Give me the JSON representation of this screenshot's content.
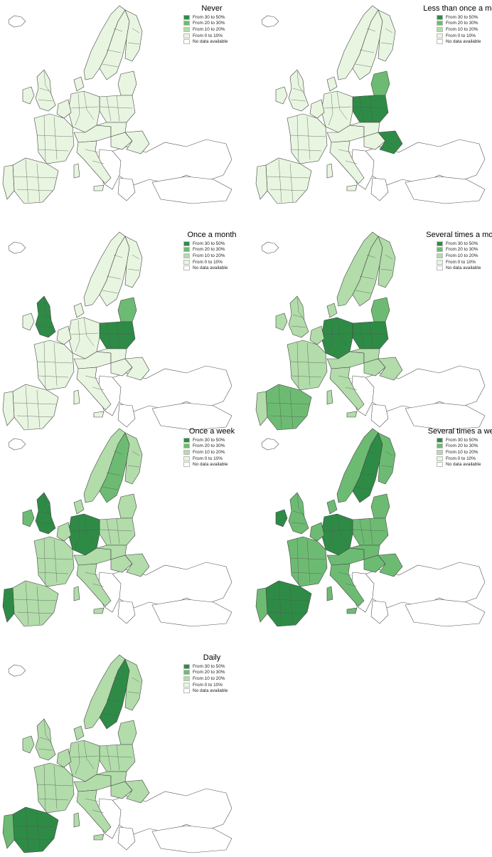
{
  "legend_classes": [
    {
      "label": "From 30 to 50%",
      "color": "#2e8b46"
    },
    {
      "label": "From 20 to 30%",
      "color": "#6dbb73"
    },
    {
      "label": "From 10 to 20%",
      "color": "#b2dcaa"
    },
    {
      "label": "From 0 to 10%",
      "color": "#e8f5e0"
    },
    {
      "label": "No data available",
      "color": "#ffffff"
    }
  ],
  "maps": [
    {
      "title": "Never",
      "dominant_class": "From 0 to 10%"
    },
    {
      "title": "Less than once a month",
      "dominant_class": "From 0 to 10%"
    },
    {
      "title": "Once a month",
      "dominant_class": "From 0 to 10%"
    },
    {
      "title": "Several times a month",
      "dominant_class": "From 10 to 20%"
    },
    {
      "title": "Once a week",
      "dominant_class": "From 10 to 20%"
    },
    {
      "title": "Several times a week",
      "dominant_class": "From 20 to 30%"
    },
    {
      "title": "Daily",
      "dominant_class": "From 10 to 20%"
    }
  ]
}
